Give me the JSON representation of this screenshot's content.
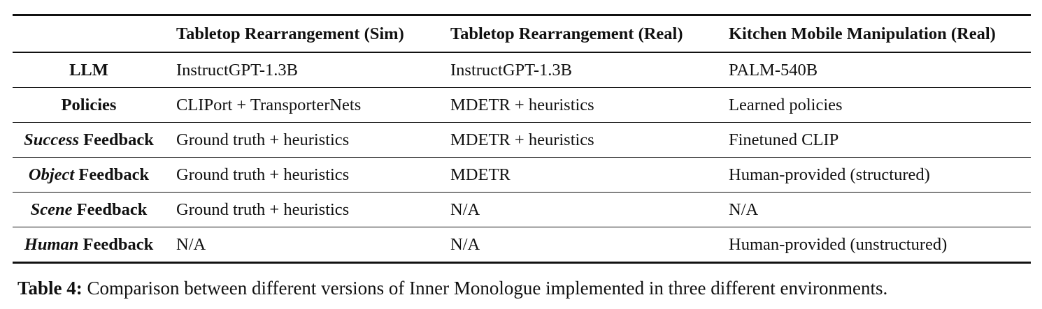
{
  "table": {
    "headers": [
      "",
      "Tabletop Rearrangement (Sim)",
      "Tabletop Rearrangement (Real)",
      "Kitchen Mobile Manipulation (Real)"
    ],
    "rows": [
      {
        "label_em": "",
        "label_rest": "LLM",
        "cells": [
          "InstructGPT-1.3B",
          "InstructGPT-1.3B",
          "PALM-540B"
        ]
      },
      {
        "label_em": "",
        "label_rest": "Policies",
        "cells": [
          "CLIPort + TransporterNets",
          "MDETR + heuristics",
          "Learned policies"
        ]
      },
      {
        "label_em": "Success",
        "label_rest": " Feedback",
        "cells": [
          "Ground truth + heuristics",
          "MDETR + heuristics",
          "Finetuned CLIP"
        ]
      },
      {
        "label_em": "Object",
        "label_rest": " Feedback",
        "cells": [
          "Ground truth + heuristics",
          "MDETR",
          "Human-provided (structured)"
        ]
      },
      {
        "label_em": "Scene",
        "label_rest": " Feedback",
        "cells": [
          "Ground truth + heuristics",
          "N/A",
          "N/A"
        ]
      },
      {
        "label_em": "Human",
        "label_rest": " Feedback",
        "cells": [
          "N/A",
          "N/A",
          "Human-provided (unstructured)"
        ]
      }
    ]
  },
  "caption": {
    "label": "Table 4:",
    "text": " Comparison between different versions of Inner Monologue implemented in three different environments."
  }
}
